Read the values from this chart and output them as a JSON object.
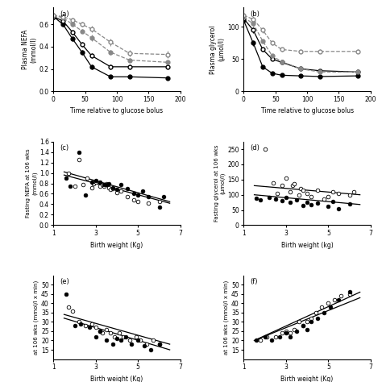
{
  "panel_a": {
    "label": "(a)",
    "xlabel": "Time relative to glucose bolus",
    "ylabel": "Plasma NEFA\n(mmol/l)",
    "xlim": [
      0,
      200
    ],
    "ylim": [
      0,
      0.75
    ],
    "yticks": [
      0,
      0.2,
      0.4,
      0.6
    ],
    "xticks": [
      0,
      50,
      100,
      150,
      200
    ],
    "time": [
      0,
      15,
      30,
      45,
      60,
      90,
      120,
      180
    ],
    "series": [
      {
        "y": [
          0.67,
          0.6,
          0.47,
          0.35,
          0.22,
          0.13,
          0.13,
          0.12
        ],
        "color": "black",
        "fill": true,
        "dashed": false,
        "errors": [
          0.02,
          0.02,
          0.02,
          0.02,
          0.02,
          0.01,
          0.01,
          0.01
        ]
      },
      {
        "y": [
          0.67,
          0.63,
          0.53,
          0.42,
          0.32,
          0.22,
          0.22,
          0.22
        ],
        "color": "black",
        "fill": false,
        "dashed": false,
        "errors": [
          0.02,
          0.02,
          0.02,
          0.02,
          0.02,
          0.02,
          0.02,
          0.02
        ]
      },
      {
        "y": [
          0.68,
          0.66,
          0.6,
          0.54,
          0.48,
          0.35,
          0.28,
          0.26
        ],
        "color": "#888888",
        "fill": true,
        "dashed": true,
        "errors": [
          0.02,
          0.02,
          0.02,
          0.02,
          0.03,
          0.02,
          0.02,
          0.02
        ]
      },
      {
        "y": [
          0.68,
          0.67,
          0.64,
          0.6,
          0.56,
          0.44,
          0.34,
          0.33
        ],
        "color": "#888888",
        "fill": false,
        "dashed": true,
        "errors": [
          0.02,
          0.02,
          0.02,
          0.02,
          0.03,
          0.03,
          0.03,
          0.03
        ]
      }
    ]
  },
  "panel_b": {
    "label": "(b)",
    "xlabel": "Time relative to glucose bolus",
    "ylabel": "Plasma glycerol\n(μmol/l)",
    "xlim": [
      0,
      200
    ],
    "ylim": [
      0,
      130
    ],
    "yticks": [
      0,
      50,
      100
    ],
    "xticks": [
      0,
      50,
      100,
      150,
      200
    ],
    "time": [
      0,
      15,
      30,
      45,
      60,
      90,
      120,
      180
    ],
    "series": [
      {
        "y": [
          110,
          75,
          38,
          28,
          25,
          24,
          23,
          24
        ],
        "color": "black",
        "fill": true,
        "dashed": false,
        "errors": [
          4,
          4,
          3,
          2,
          2,
          2,
          2,
          2
        ]
      },
      {
        "y": [
          113,
          95,
          65,
          50,
          45,
          35,
          32,
          30
        ],
        "color": "black",
        "fill": false,
        "dashed": false,
        "errors": [
          4,
          4,
          3,
          2,
          2,
          2,
          2,
          2
        ]
      },
      {
        "y": [
          115,
          105,
          78,
          55,
          46,
          35,
          30,
          30
        ],
        "color": "#888888",
        "fill": true,
        "dashed": true,
        "errors": [
          4,
          4,
          3,
          3,
          2,
          2,
          2,
          2
        ]
      },
      {
        "y": [
          118,
          112,
          95,
          75,
          65,
          62,
          62,
          62
        ],
        "color": "#888888",
        "fill": false,
        "dashed": true,
        "errors": [
          5,
          5,
          4,
          3,
          3,
          3,
          3,
          3
        ]
      }
    ]
  },
  "panel_c": {
    "label": "(c)",
    "xlabel": "Birth weight (Kg)",
    "ylabel": "Fasting NEFA at 106 wks (mmol/l)",
    "xlim": [
      1,
      7
    ],
    "ylim": [
      0,
      1.6
    ],
    "yticks": [
      0,
      0.2,
      0.4,
      0.6,
      0.8,
      1.0,
      1.2,
      1.4,
      1.6
    ],
    "xticks": [
      1,
      3,
      5,
      7
    ],
    "open_x": [
      1.7,
      2.0,
      2.2,
      2.4,
      2.6,
      2.8,
      2.9,
      3.0,
      3.2,
      3.3,
      3.4,
      3.5,
      3.6,
      3.7,
      3.8,
      4.0,
      4.2,
      4.5,
      4.8,
      5.0,
      5.5,
      6.0
    ],
    "open_y": [
      1.0,
      0.75,
      1.25,
      0.78,
      0.9,
      0.72,
      0.8,
      0.82,
      0.75,
      0.78,
      0.75,
      0.8,
      0.72,
      0.68,
      0.7,
      0.62,
      0.65,
      0.55,
      0.48,
      0.45,
      0.42,
      0.45
    ],
    "filled_x": [
      1.6,
      1.8,
      2.2,
      2.5,
      2.8,
      3.0,
      3.2,
      3.4,
      3.5,
      3.6,
      3.8,
      4.0,
      4.2,
      4.5,
      4.8,
      5.0,
      5.2,
      5.5,
      6.0,
      6.2
    ],
    "filled_y": [
      0.9,
      0.75,
      1.4,
      0.58,
      0.82,
      0.85,
      0.82,
      0.78,
      0.78,
      0.8,
      0.72,
      0.68,
      0.78,
      0.7,
      0.6,
      0.58,
      0.65,
      0.55,
      0.35,
      0.55
    ],
    "open_line": {
      "x0": 1.5,
      "x1": 6.5,
      "y0": 1.02,
      "y1": 0.45
    },
    "filled_line": {
      "x0": 1.5,
      "x1": 6.5,
      "y0": 0.96,
      "y1": 0.42
    }
  },
  "panel_d": {
    "label": "(d)",
    "xlabel": "Birth weight (kg)",
    "ylabel": "Fasting glycerol at 106 wks (μmol/l)",
    "xlim": [
      1,
      7
    ],
    "ylim": [
      0,
      275
    ],
    "yticks": [
      0,
      50,
      100,
      150,
      200,
      250
    ],
    "xticks": [
      1,
      3,
      5,
      7
    ],
    "open_x": [
      2.0,
      2.4,
      2.6,
      2.8,
      3.0,
      3.2,
      3.3,
      3.4,
      3.6,
      3.7,
      3.8,
      4.0,
      4.2,
      4.5,
      4.8,
      5.0,
      5.2,
      5.5,
      6.0,
      6.2
    ],
    "open_y": [
      250,
      140,
      105,
      130,
      155,
      110,
      130,
      135,
      100,
      120,
      115,
      105,
      95,
      115,
      85,
      95,
      110,
      105,
      100,
      110
    ],
    "filled_x": [
      1.6,
      1.8,
      2.2,
      2.5,
      2.8,
      3.0,
      3.2,
      3.5,
      3.8,
      4.0,
      4.2,
      4.5,
      5.0,
      5.2,
      5.5,
      6.0
    ],
    "filled_y": [
      88,
      82,
      90,
      85,
      80,
      90,
      75,
      82,
      65,
      75,
      68,
      72,
      62,
      78,
      55,
      70
    ],
    "open_line": {
      "x0": 1.5,
      "x1": 6.5,
      "y0": 130,
      "y1": 100
    },
    "filled_line": {
      "x0": 1.5,
      "x1": 6.5,
      "y0": 100,
      "y1": 68
    }
  },
  "panel_e": {
    "label": "(e)",
    "xlabel": "Birth weight (Kg)",
    "ylabel": "at 106 wks (mmol/l x min)",
    "xlim": [
      1,
      7
    ],
    "ylim": [
      10,
      55
    ],
    "yticks": [
      15,
      20,
      25,
      30,
      35,
      40,
      45,
      50
    ],
    "xticks": [
      1,
      3,
      5,
      7
    ],
    "open_x": [
      1.7,
      1.9,
      2.2,
      2.5,
      2.8,
      3.0,
      3.2,
      3.3,
      3.5,
      3.7,
      3.9,
      4.1,
      4.3,
      4.6,
      4.9,
      5.1,
      5.4,
      5.7,
      6.0
    ],
    "open_y": [
      38,
      36,
      30,
      28,
      29,
      27,
      25,
      24,
      26,
      24,
      22,
      24,
      22,
      20,
      22,
      20,
      18,
      20,
      18
    ],
    "filled_x": [
      1.6,
      2.0,
      2.3,
      2.7,
      3.0,
      3.2,
      3.5,
      3.8,
      4.0,
      4.2,
      4.4,
      4.7,
      5.0,
      5.3,
      5.6,
      6.0
    ],
    "filled_y": [
      45,
      28,
      29,
      27,
      22,
      25,
      20,
      18,
      21,
      20,
      22,
      18,
      20,
      17,
      15,
      18
    ],
    "open_line": {
      "x0": 1.5,
      "x1": 6.5,
      "y0": 34,
      "y1": 18
    },
    "filled_line": {
      "x0": 1.5,
      "x1": 6.5,
      "y0": 32,
      "y1": 15
    }
  },
  "panel_f": {
    "label": "(f)",
    "xlabel": "Birth weight (Kg)",
    "ylabel": "at 106 wks (mmol/l x min)",
    "xlim": [
      1,
      7
    ],
    "ylim": [
      10,
      55
    ],
    "yticks": [
      15,
      20,
      25,
      30,
      35,
      40,
      45,
      50
    ],
    "xticks": [
      1,
      3,
      5,
      7
    ],
    "open_x": [
      1.8,
      2.1,
      2.5,
      2.8,
      3.0,
      3.2,
      3.4,
      3.6,
      3.8,
      4.0,
      4.2,
      4.4,
      4.7,
      5.0,
      5.3,
      5.6,
      6.0
    ],
    "open_y": [
      20,
      22,
      22,
      24,
      25,
      24,
      26,
      30,
      28,
      30,
      32,
      35,
      38,
      40,
      42,
      44,
      45
    ],
    "filled_x": [
      1.6,
      2.0,
      2.3,
      2.7,
      3.0,
      3.2,
      3.5,
      3.8,
      4.0,
      4.2,
      4.5,
      4.8,
      5.1,
      5.5,
      6.0
    ],
    "filled_y": [
      20,
      22,
      20,
      22,
      24,
      22,
      25,
      28,
      26,
      30,
      32,
      35,
      38,
      42,
      46
    ],
    "open_line": {
      "x0": 1.5,
      "x1": 6.5,
      "y0": 20,
      "y1": 43
    },
    "filled_line": {
      "x0": 1.5,
      "x1": 6.5,
      "y0": 20,
      "y1": 46
    }
  }
}
